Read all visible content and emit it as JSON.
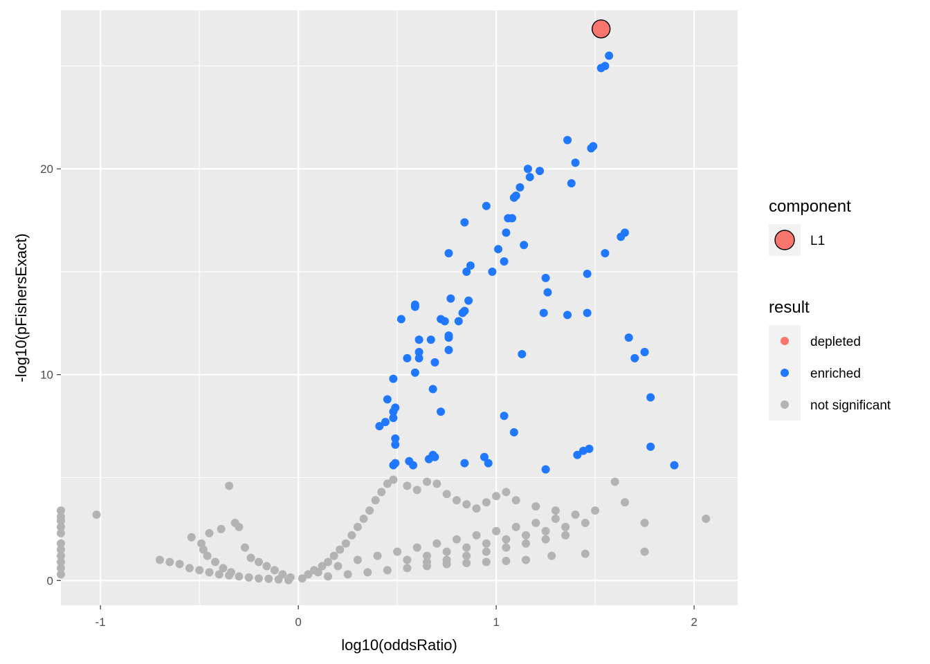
{
  "chart_data": {
    "type": "scatter",
    "title": "",
    "xlabel": "log10(oddsRatio)",
    "ylabel": "-log10(pFishersExact)",
    "xlim": [
      -1.2,
      2.22
    ],
    "ylim": [
      -1.2,
      27.7
    ],
    "x_ticks": [
      -1,
      0,
      1,
      2
    ],
    "x_tick_labels": [
      "-1",
      "0",
      "1",
      "2"
    ],
    "y_ticks": [
      0,
      10,
      20
    ],
    "y_tick_labels": [
      "0",
      "10",
      "20"
    ],
    "grid": true,
    "colors": {
      "panel": "#ebebeb",
      "grid": "#ffffff",
      "depleted": "#f8766d",
      "enriched": "#1f78ff",
      "not_significant": "#b3b3b3",
      "component": "#f8766d"
    },
    "legends": {
      "component": {
        "title": "component",
        "entries": [
          {
            "label": "L1",
            "color": "#f8766d"
          }
        ]
      },
      "result": {
        "title": "result",
        "entries": [
          {
            "label": "depleted",
            "color": "#f8766d"
          },
          {
            "label": "enriched",
            "color": "#1f78ff"
          },
          {
            "label": "not significant",
            "color": "#b3b3b3"
          }
        ]
      }
    },
    "series": [
      {
        "name": "enriched",
        "points": [
          [
            1.55,
            25.0
          ],
          [
            1.57,
            25.5
          ],
          [
            1.53,
            24.9
          ],
          [
            1.36,
            21.4
          ],
          [
            1.48,
            21.0
          ],
          [
            1.49,
            21.1
          ],
          [
            1.4,
            20.3
          ],
          [
            1.38,
            19.3
          ],
          [
            1.16,
            20.0
          ],
          [
            1.17,
            19.6
          ],
          [
            1.22,
            19.9
          ],
          [
            1.12,
            19.1
          ],
          [
            1.1,
            18.7
          ],
          [
            1.09,
            18.6
          ],
          [
            0.95,
            18.2
          ],
          [
            1.06,
            17.6
          ],
          [
            1.08,
            17.6
          ],
          [
            1.05,
            16.9
          ],
          [
            0.84,
            17.4
          ],
          [
            1.01,
            16.1
          ],
          [
            1.04,
            15.5
          ],
          [
            1.14,
            16.3
          ],
          [
            0.76,
            15.9
          ],
          [
            0.87,
            15.3
          ],
          [
            0.85,
            15.0
          ],
          [
            0.98,
            15.0
          ],
          [
            1.25,
            14.7
          ],
          [
            1.26,
            14.0
          ],
          [
            1.46,
            14.9
          ],
          [
            1.63,
            16.7
          ],
          [
            1.65,
            16.9
          ],
          [
            1.55,
            15.9
          ],
          [
            0.59,
            13.3
          ],
          [
            0.59,
            13.4
          ],
          [
            0.77,
            13.7
          ],
          [
            0.86,
            13.6
          ],
          [
            0.83,
            13.0
          ],
          [
            0.84,
            13.1
          ],
          [
            0.52,
            12.7
          ],
          [
            0.72,
            12.7
          ],
          [
            0.74,
            12.6
          ],
          [
            0.81,
            12.6
          ],
          [
            1.24,
            13.0
          ],
          [
            1.36,
            12.9
          ],
          [
            1.46,
            13.0
          ],
          [
            0.61,
            11.7
          ],
          [
            0.67,
            11.7
          ],
          [
            0.76,
            11.8
          ],
          [
            0.76,
            11.9
          ],
          [
            0.61,
            11.1
          ],
          [
            0.76,
            11.2
          ],
          [
            0.55,
            10.8
          ],
          [
            0.61,
            10.8
          ],
          [
            0.69,
            10.6
          ],
          [
            1.13,
            11.0
          ],
          [
            1.67,
            11.8
          ],
          [
            1.7,
            10.8
          ],
          [
            1.75,
            11.1
          ],
          [
            1.75,
            11.1
          ],
          [
            0.48,
            9.8
          ],
          [
            0.59,
            10.1
          ],
          [
            0.68,
            9.3
          ],
          [
            0.45,
            8.8
          ],
          [
            0.49,
            8.4
          ],
          [
            0.48,
            8.2
          ],
          [
            0.48,
            7.9
          ],
          [
            0.72,
            8.2
          ],
          [
            1.04,
            8.0
          ],
          [
            0.44,
            7.7
          ],
          [
            0.41,
            7.5
          ],
          [
            0.49,
            6.9
          ],
          [
            0.49,
            6.6
          ],
          [
            1.09,
            7.2
          ],
          [
            1.78,
            8.9
          ],
          [
            1.78,
            6.5
          ],
          [
            1.41,
            6.1
          ],
          [
            1.44,
            6.3
          ],
          [
            1.47,
            6.4
          ],
          [
            0.68,
            6.1
          ],
          [
            0.69,
            6.0
          ],
          [
            0.66,
            5.9
          ],
          [
            0.56,
            5.8
          ],
          [
            0.49,
            5.7
          ],
          [
            0.48,
            5.6
          ],
          [
            0.58,
            5.6
          ],
          [
            0.84,
            5.7
          ],
          [
            0.94,
            6.0
          ],
          [
            0.96,
            5.7
          ],
          [
            1.25,
            5.4
          ],
          [
            1.9,
            5.6
          ]
        ]
      },
      {
        "name": "not significant",
        "points": [
          [
            -1.2,
            3.4
          ],
          [
            -1.2,
            3.1
          ],
          [
            -1.2,
            2.9
          ],
          [
            -1.2,
            2.6
          ],
          [
            -1.2,
            2.3
          ],
          [
            -1.2,
            1.8
          ],
          [
            -1.2,
            1.5
          ],
          [
            -1.2,
            1.2
          ],
          [
            -1.2,
            0.9
          ],
          [
            -1.2,
            0.6
          ],
          [
            -1.2,
            0.3
          ],
          [
            -1.02,
            3.2
          ],
          [
            -0.35,
            4.6
          ],
          [
            -0.32,
            2.8
          ],
          [
            -0.39,
            2.5
          ],
          [
            -0.45,
            2.3
          ],
          [
            -0.54,
            2.1
          ],
          [
            -0.49,
            1.8
          ],
          [
            -0.48,
            1.5
          ],
          [
            -0.46,
            1.2
          ],
          [
            -0.42,
            0.9
          ],
          [
            -0.38,
            0.6
          ],
          [
            -0.34,
            0.4
          ],
          [
            -0.3,
            2.6
          ],
          [
            -0.27,
            1.6
          ],
          [
            -0.24,
            1.1
          ],
          [
            -0.2,
            0.9
          ],
          [
            -0.16,
            0.7
          ],
          [
            -0.12,
            0.5
          ],
          [
            -0.08,
            0.3
          ],
          [
            -0.04,
            0.15
          ],
          [
            -0.7,
            1.0
          ],
          [
            -0.65,
            0.9
          ],
          [
            -0.6,
            0.8
          ],
          [
            -0.55,
            0.6
          ],
          [
            -0.5,
            0.5
          ],
          [
            -0.45,
            0.4
          ],
          [
            -0.4,
            0.3
          ],
          [
            -0.35,
            0.25
          ],
          [
            -0.3,
            0.2
          ],
          [
            -0.25,
            0.15
          ],
          [
            -0.2,
            0.1
          ],
          [
            -0.15,
            0.08
          ],
          [
            -0.1,
            0.05
          ],
          [
            -0.05,
            0.02
          ],
          [
            0.02,
            0.1
          ],
          [
            0.05,
            0.3
          ],
          [
            0.08,
            0.5
          ],
          [
            0.12,
            0.7
          ],
          [
            0.15,
            0.9
          ],
          [
            0.18,
            1.2
          ],
          [
            0.21,
            1.5
          ],
          [
            0.24,
            1.8
          ],
          [
            0.27,
            2.2
          ],
          [
            0.3,
            2.6
          ],
          [
            0.33,
            3.0
          ],
          [
            0.36,
            3.4
          ],
          [
            0.39,
            3.9
          ],
          [
            0.42,
            4.3
          ],
          [
            0.45,
            4.7
          ],
          [
            0.48,
            4.9
          ],
          [
            0.55,
            4.6
          ],
          [
            0.6,
            4.4
          ],
          [
            0.65,
            4.8
          ],
          [
            0.7,
            4.7
          ],
          [
            0.75,
            4.2
          ],
          [
            0.8,
            3.9
          ],
          [
            0.85,
            3.7
          ],
          [
            0.9,
            3.5
          ],
          [
            0.95,
            3.8
          ],
          [
            1.0,
            4.1
          ],
          [
            1.05,
            4.3
          ],
          [
            1.1,
            3.9
          ],
          [
            1.2,
            3.6
          ],
          [
            1.3,
            3.4
          ],
          [
            1.4,
            3.2
          ],
          [
            1.5,
            3.4
          ],
          [
            1.6,
            4.8
          ],
          [
            1.65,
            3.8
          ],
          [
            1.75,
            2.8
          ],
          [
            1.75,
            1.4
          ],
          [
            2.06,
            3.0
          ],
          [
            1.45,
            1.3
          ],
          [
            1.28,
            1.2
          ],
          [
            1.15,
            1.0
          ],
          [
            1.05,
            0.95
          ],
          [
            0.95,
            0.9
          ],
          [
            0.85,
            0.85
          ],
          [
            0.75,
            0.8
          ],
          [
            0.65,
            0.7
          ],
          [
            0.55,
            0.6
          ],
          [
            0.45,
            0.5
          ],
          [
            0.35,
            0.4
          ],
          [
            0.25,
            0.3
          ],
          [
            0.15,
            0.2
          ],
          [
            1.35,
            2.2
          ],
          [
            1.25,
            2.0
          ],
          [
            1.15,
            1.8
          ],
          [
            1.05,
            1.6
          ],
          [
            0.95,
            1.4
          ],
          [
            0.85,
            1.2
          ],
          [
            0.75,
            1.0
          ],
          [
            0.65,
            0.9
          ],
          [
            1.45,
            2.8
          ],
          [
            1.35,
            2.6
          ],
          [
            1.25,
            2.4
          ],
          [
            1.15,
            2.2
          ],
          [
            1.05,
            2.0
          ],
          [
            0.95,
            1.8
          ],
          [
            0.85,
            1.6
          ],
          [
            0.75,
            1.4
          ],
          [
            0.65,
            1.2
          ],
          [
            0.55,
            1.0
          ],
          [
            1.3,
            3.0
          ],
          [
            1.2,
            2.8
          ],
          [
            1.1,
            2.6
          ],
          [
            1.0,
            2.4
          ],
          [
            0.9,
            2.2
          ],
          [
            0.8,
            2.0
          ],
          [
            0.7,
            1.8
          ],
          [
            0.6,
            1.6
          ],
          [
            0.5,
            1.4
          ],
          [
            0.4,
            1.2
          ],
          [
            0.3,
            1.0
          ],
          [
            0.2,
            0.7
          ],
          [
            0.1,
            0.4
          ]
        ]
      },
      {
        "name": "L1",
        "points": [
          [
            1.53,
            26.8
          ]
        ]
      }
    ]
  }
}
